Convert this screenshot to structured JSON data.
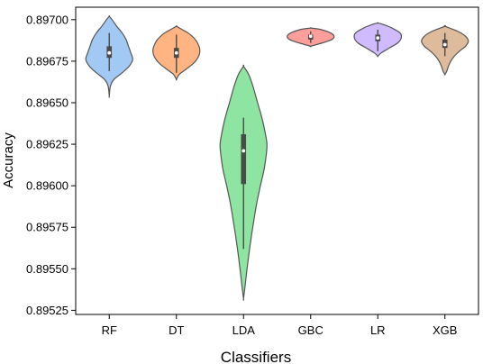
{
  "chart_data": {
    "type": "violin",
    "title": "",
    "xlabel": "Classifiers",
    "ylabel": "Accuracy",
    "ylim": [
      0.895225,
      0.897075
    ],
    "yticks": [
      0.89525,
      0.8955,
      0.89575,
      0.896,
      0.89625,
      0.8965,
      0.89675,
      0.897
    ],
    "ytick_labels": [
      "0.89525",
      "0.89550",
      "0.89575",
      "0.89600",
      "0.89625",
      "0.89650",
      "0.89675",
      "0.89700"
    ],
    "categories": [
      "RF",
      "DT",
      "LDA",
      "GBC",
      "LR",
      "XGB"
    ],
    "grid": false,
    "legend": "none",
    "violins": [
      {
        "name": "RF",
        "color": "#a1c9f4",
        "profile": [
          [
            0.89654,
            0
          ],
          [
            0.8966,
            0.05
          ],
          [
            0.89664,
            0.2
          ],
          [
            0.89668,
            0.55
          ],
          [
            0.89672,
            0.85
          ],
          [
            0.89676,
            1.0
          ],
          [
            0.8968,
            0.92
          ],
          [
            0.89684,
            0.82
          ],
          [
            0.89688,
            0.72
          ],
          [
            0.89692,
            0.55
          ],
          [
            0.89696,
            0.32
          ],
          [
            0.897,
            0.12
          ],
          [
            0.89702,
            0
          ]
        ],
        "box": {
          "q1": 0.89677,
          "median": 0.8968,
          "q3": 0.89684,
          "whisker_low": 0.89669,
          "whisker_high": 0.89692
        }
      },
      {
        "name": "DT",
        "color": "#ffb482",
        "profile": [
          [
            0.89664,
            0
          ],
          [
            0.89667,
            0.12
          ],
          [
            0.8967,
            0.4
          ],
          [
            0.89674,
            0.75
          ],
          [
            0.89678,
            0.95
          ],
          [
            0.89682,
            1.0
          ],
          [
            0.89686,
            0.9
          ],
          [
            0.89689,
            0.75
          ],
          [
            0.89692,
            0.5
          ],
          [
            0.89694,
            0.25
          ],
          [
            0.89696,
            0
          ]
        ],
        "box": {
          "q1": 0.89677,
          "median": 0.8968,
          "q3": 0.89683,
          "whisker_low": 0.89668,
          "whisker_high": 0.89691
        }
      },
      {
        "name": "LDA",
        "color": "#8de5a1",
        "profile": [
          [
            0.89532,
            0
          ],
          [
            0.8954,
            0.07
          ],
          [
            0.8955,
            0.15
          ],
          [
            0.8956,
            0.24
          ],
          [
            0.8957,
            0.34
          ],
          [
            0.8958,
            0.45
          ],
          [
            0.8959,
            0.57
          ],
          [
            0.896,
            0.72
          ],
          [
            0.8961,
            0.88
          ],
          [
            0.8962,
            0.98
          ],
          [
            0.89625,
            1.0
          ],
          [
            0.8963,
            0.95
          ],
          [
            0.8964,
            0.8
          ],
          [
            0.8965,
            0.6
          ],
          [
            0.8966,
            0.4
          ],
          [
            0.89667,
            0.22
          ],
          [
            0.89672,
            0
          ]
        ],
        "box": {
          "q1": 0.89601,
          "median": 0.89621,
          "q3": 0.89631,
          "whisker_low": 0.89562,
          "whisker_high": 0.89641
        }
      },
      {
        "name": "GBC",
        "color": "#ff9f9b",
        "profile": [
          [
            0.89684,
            0
          ],
          [
            0.89686,
            0.5
          ],
          [
            0.89688,
            0.9
          ],
          [
            0.8969,
            1.0
          ],
          [
            0.89692,
            0.85
          ],
          [
            0.89694,
            0.45
          ],
          [
            0.89695,
            0
          ]
        ],
        "box": {
          "q1": 0.89688,
          "median": 0.8969,
          "q3": 0.89691,
          "whisker_low": 0.89686,
          "whisker_high": 0.89693
        }
      },
      {
        "name": "LR",
        "color": "#d0bbff",
        "profile": [
          [
            0.89678,
            0
          ],
          [
            0.8968,
            0.15
          ],
          [
            0.89683,
            0.5
          ],
          [
            0.89686,
            0.85
          ],
          [
            0.89689,
            1.0
          ],
          [
            0.89692,
            0.95
          ],
          [
            0.89695,
            0.6
          ],
          [
            0.89697,
            0.25
          ],
          [
            0.89698,
            0
          ]
        ],
        "box": {
          "q1": 0.89687,
          "median": 0.89689,
          "q3": 0.89691,
          "whisker_low": 0.89681,
          "whisker_high": 0.89694
        }
      },
      {
        "name": "XGB",
        "color": "#debb9b",
        "profile": [
          [
            0.89667,
            0
          ],
          [
            0.89669,
            0.08
          ],
          [
            0.89672,
            0.15
          ],
          [
            0.89675,
            0.25
          ],
          [
            0.89678,
            0.4
          ],
          [
            0.89681,
            0.62
          ],
          [
            0.89684,
            0.88
          ],
          [
            0.89687,
            1.0
          ],
          [
            0.8969,
            0.88
          ],
          [
            0.89693,
            0.55
          ],
          [
            0.89696,
            0
          ]
        ],
        "box": {
          "q1": 0.89683,
          "median": 0.89685,
          "q3": 0.89688,
          "whisker_low": 0.89678,
          "whisker_high": 0.89692
        }
      }
    ]
  }
}
